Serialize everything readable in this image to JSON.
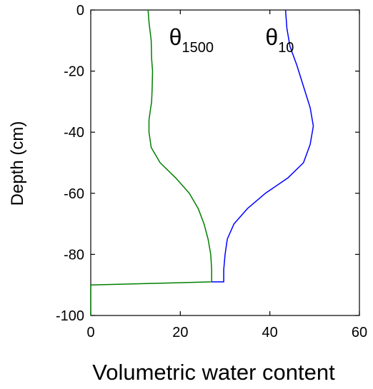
{
  "chart_data": {
    "type": "line",
    "xlabel": "Volumetric water content",
    "ylabel": "Depth (cm)",
    "xlim": [
      0,
      60
    ],
    "ylim": [
      -100,
      0
    ],
    "x_ticks": [
      0,
      20,
      40,
      60
    ],
    "y_ticks": [
      0,
      -20,
      -40,
      -60,
      -80,
      -100
    ],
    "x_tick_labels": [
      "0",
      "20",
      "40",
      "60"
    ],
    "y_tick_labels": [
      "0",
      "-20",
      "-40",
      "-60",
      "-80",
      "-100"
    ],
    "grid": false,
    "legend": "none",
    "annotations": [
      {
        "base": "θ",
        "subscript": "1500",
        "x": 17.5,
        "y": -10
      },
      {
        "base": "θ",
        "subscript": "10",
        "x": 39,
        "y": -10
      }
    ],
    "series": [
      {
        "label": "θ1500",
        "color": "#008000",
        "points": [
          [
            12.8,
            0
          ],
          [
            13.0,
            -4
          ],
          [
            13.5,
            -10
          ],
          [
            13.6,
            -16
          ],
          [
            13.8,
            -20
          ],
          [
            13.7,
            -26
          ],
          [
            13.6,
            -30
          ],
          [
            13.3,
            -33
          ],
          [
            13.0,
            -36
          ],
          [
            13.0,
            -40
          ],
          [
            13.5,
            -45
          ],
          [
            15.5,
            -50
          ],
          [
            19.0,
            -55
          ],
          [
            22.0,
            -60
          ],
          [
            24.0,
            -65
          ],
          [
            25.3,
            -70
          ],
          [
            26.2,
            -75
          ],
          [
            26.8,
            -80
          ],
          [
            27.0,
            -85
          ],
          [
            27.0,
            -89
          ],
          [
            0,
            -90
          ],
          [
            0,
            -100
          ]
        ]
      },
      {
        "label": "θ10",
        "color": "#0000ff",
        "points": [
          [
            43.5,
            0
          ],
          [
            43.8,
            -6
          ],
          [
            44.5,
            -12
          ],
          [
            46.0,
            -18
          ],
          [
            47.5,
            -25
          ],
          [
            49.0,
            -32
          ],
          [
            49.7,
            -38
          ],
          [
            49.0,
            -44
          ],
          [
            47.5,
            -50
          ],
          [
            44.0,
            -55
          ],
          [
            39.0,
            -60
          ],
          [
            35.0,
            -65
          ],
          [
            32.0,
            -70
          ],
          [
            30.5,
            -75
          ],
          [
            30.0,
            -80
          ],
          [
            29.7,
            -85
          ],
          [
            29.7,
            -89
          ],
          [
            27.0,
            -89
          ]
        ]
      }
    ]
  }
}
